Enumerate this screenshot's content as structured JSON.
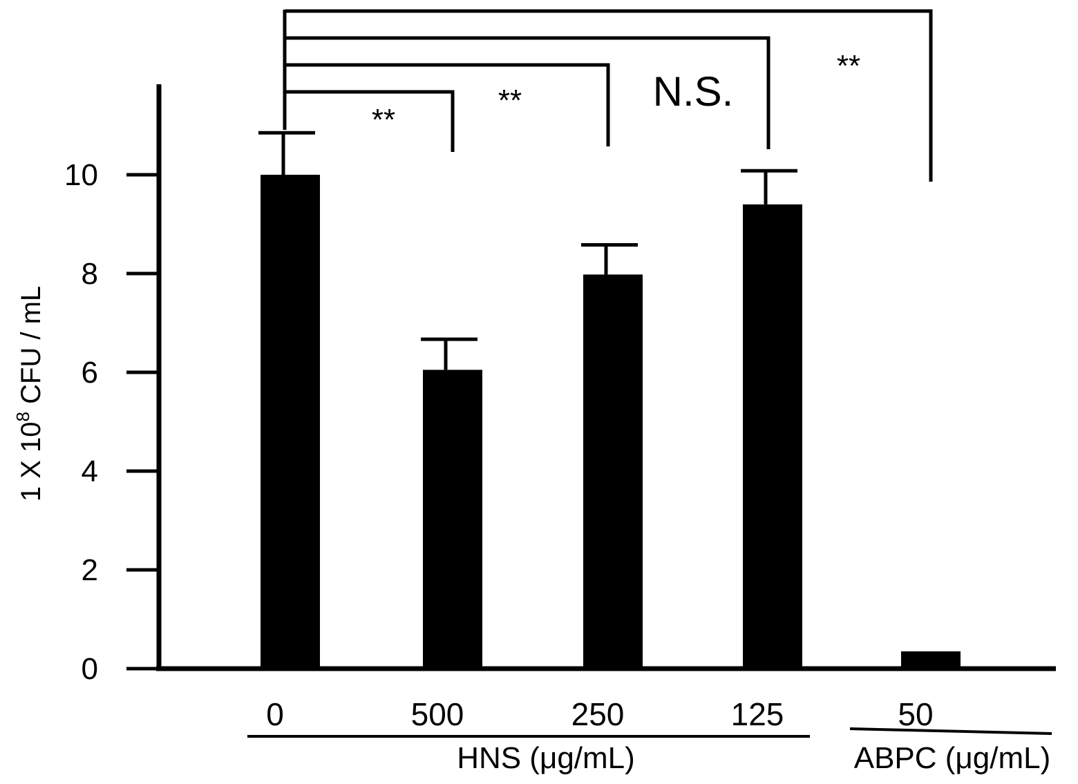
{
  "chart_data": {
    "type": "bar",
    "ylabel": {
      "prefix": "1 X 10",
      "exponent": "8",
      "suffix": " CFU / mL"
    },
    "ylim": [
      0,
      10
    ],
    "yticks": [
      "0",
      "2",
      "4",
      "6",
      "8",
      "10"
    ],
    "categories": [
      "0",
      "500",
      "250",
      "125",
      "50"
    ],
    "values": [
      10.0,
      6.05,
      7.98,
      9.4,
      0.35
    ],
    "errors": [
      0.85,
      0.62,
      0.6,
      0.68,
      0
    ],
    "groups": [
      {
        "label": "HNS (μg/mL)",
        "categories": [
          0,
          1,
          2,
          3
        ]
      },
      {
        "label": "ABPC (μg/mL)",
        "categories": [
          4
        ]
      }
    ],
    "significance": [
      {
        "compare": [
          0,
          1
        ],
        "label": "**"
      },
      {
        "compare": [
          0,
          2
        ],
        "label": "**"
      },
      {
        "compare": [
          0,
          3
        ],
        "label": "N.S."
      },
      {
        "compare": [
          0,
          4
        ],
        "label": "**"
      }
    ],
    "bar_color": "#000000",
    "grid": false,
    "legend": "none"
  }
}
